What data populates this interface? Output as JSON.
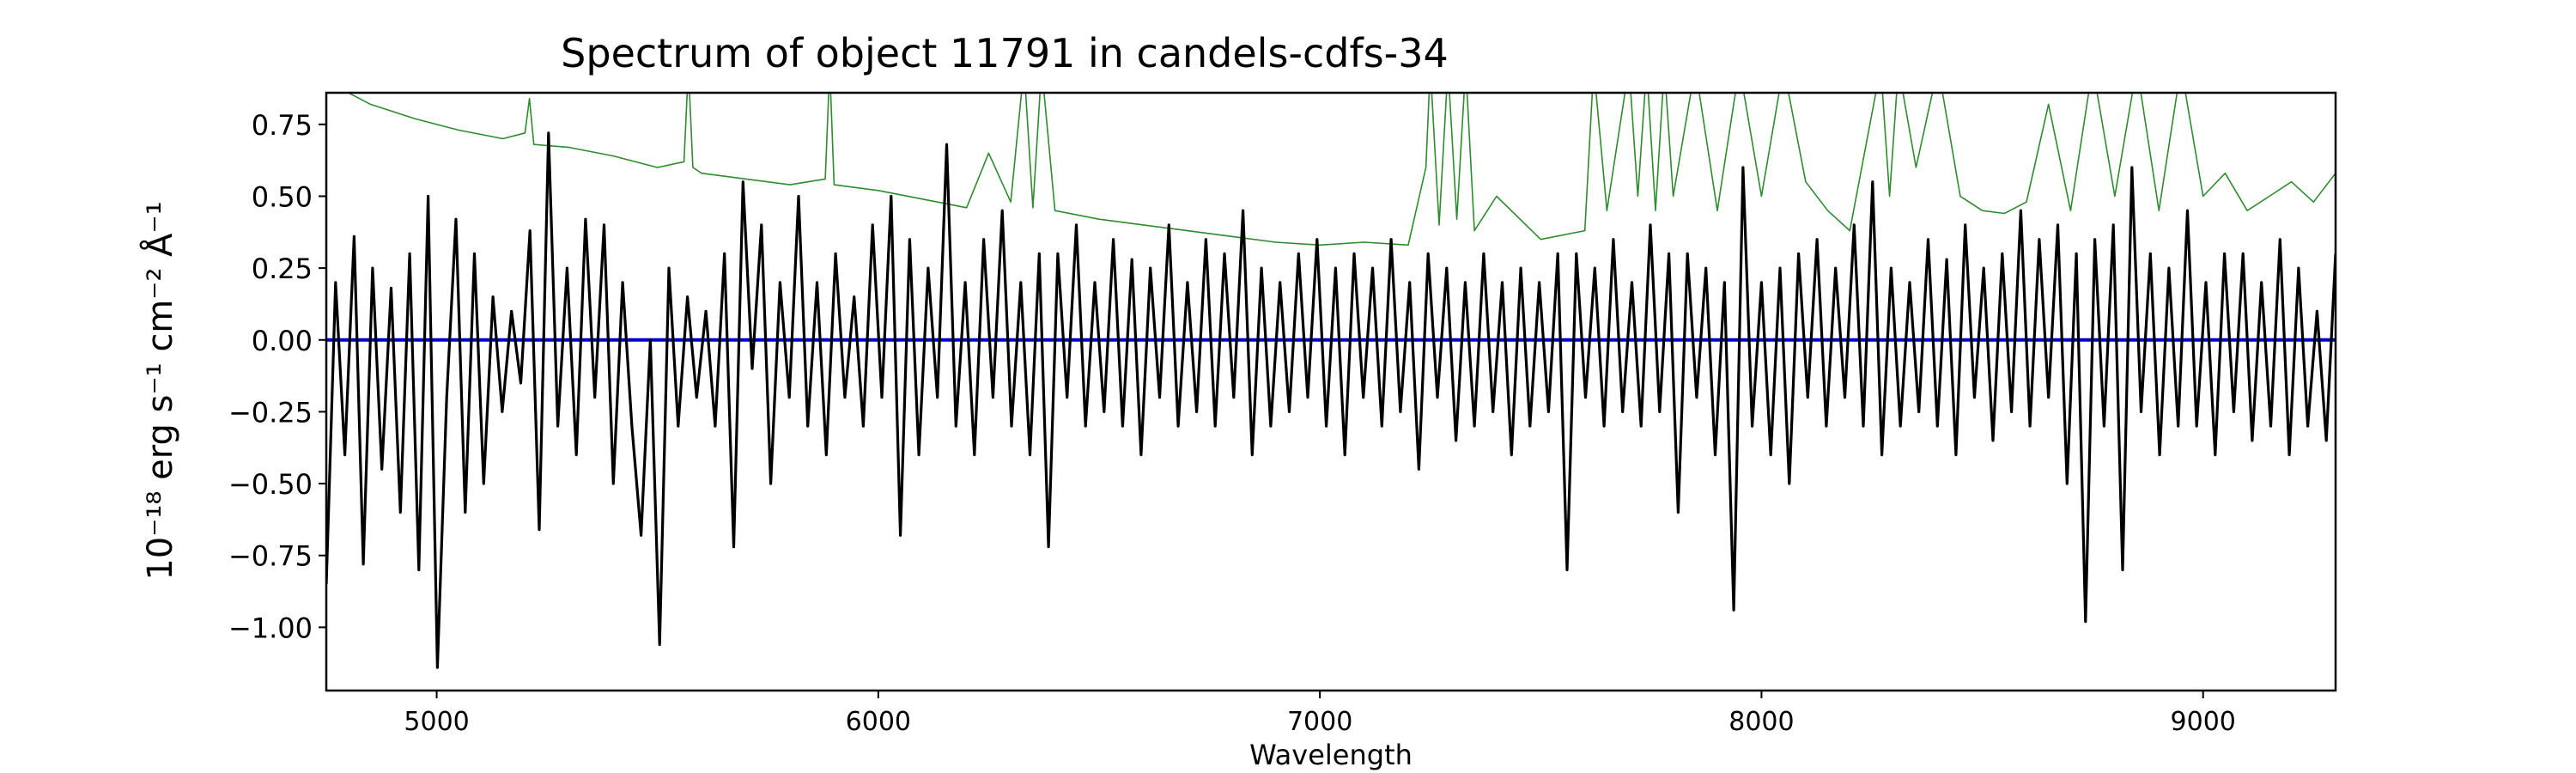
{
  "chart_data": {
    "type": "line",
    "title": "Spectrum of object 11791 in candels-cdfs-34",
    "xlabel": "Wavelength",
    "ylabel": "10⁻¹⁸ erg s⁻¹ cm⁻² Å⁻¹",
    "xlim": [
      4750,
      9300
    ],
    "ylim": [
      -1.22,
      0.86
    ],
    "x_ticks": [
      5000,
      6000,
      7000,
      8000,
      9000
    ],
    "y_ticks": [
      -1.0,
      -0.75,
      -0.5,
      -0.25,
      0.0,
      0.25,
      0.5,
      0.75
    ],
    "x_tick_labels": [
      "5000",
      "6000",
      "7000",
      "8000",
      "9000"
    ],
    "y_tick_labels": [
      "−1.00",
      "−0.75",
      "−0.50",
      "−0.25",
      "0.00",
      "0.25",
      "0.50",
      "0.75"
    ],
    "grid": false,
    "legend": "none",
    "series": [
      {
        "role": "flux",
        "color": "#000000",
        "x_start": 4750,
        "x_end": 9300,
        "values": [
          -0.85,
          0.2,
          -0.4,
          0.36,
          -0.78,
          0.25,
          -0.45,
          0.18,
          -0.6,
          0.3,
          -0.8,
          0.5,
          -1.14,
          -0.2,
          0.42,
          -0.6,
          0.3,
          -0.5,
          0.15,
          -0.25,
          0.1,
          -0.15,
          0.38,
          -0.66,
          0.72,
          -0.3,
          0.25,
          -0.4,
          0.42,
          -0.2,
          0.4,
          -0.5,
          0.2,
          -0.3,
          -0.68,
          0.0,
          -1.06,
          0.25,
          -0.3,
          0.15,
          -0.2,
          0.1,
          -0.3,
          0.3,
          -0.72,
          0.55,
          -0.1,
          0.4,
          -0.5,
          0.2,
          -0.2,
          0.5,
          -0.3,
          0.2,
          -0.4,
          0.3,
          -0.2,
          0.15,
          -0.3,
          0.4,
          -0.2,
          0.5,
          -0.68,
          0.35,
          -0.4,
          0.25,
          -0.2,
          0.68,
          -0.3,
          0.2,
          -0.4,
          0.35,
          -0.2,
          0.45,
          -0.3,
          0.2,
          -0.4,
          0.3,
          -0.72,
          0.3,
          -0.2,
          0.4,
          -0.3,
          0.2,
          -0.25,
          0.35,
          -0.3,
          0.28,
          -0.4,
          0.25,
          -0.2,
          0.4,
          -0.3,
          0.2,
          -0.25,
          0.35,
          -0.3,
          0.3,
          -0.2,
          0.45,
          -0.4,
          0.25,
          -0.3,
          0.2,
          -0.25,
          0.3,
          -0.2,
          0.35,
          -0.3,
          0.25,
          -0.4,
          0.3,
          -0.2,
          0.25,
          -0.3,
          0.35,
          -0.25,
          0.2,
          -0.45,
          0.3,
          -0.2,
          0.25,
          -0.35,
          0.2,
          -0.3,
          0.3,
          -0.25,
          0.2,
          -0.4,
          0.25,
          -0.3,
          0.2,
          -0.25,
          0.3,
          -0.8,
          0.3,
          -0.2,
          0.25,
          -0.3,
          0.35,
          -0.25,
          0.2,
          -0.3,
          0.4,
          -0.25,
          0.3,
          -0.6,
          0.3,
          -0.2,
          0.25,
          -0.4,
          0.2,
          -0.94,
          0.6,
          -0.3,
          0.2,
          -0.4,
          0.25,
          -0.5,
          0.3,
          -0.2,
          0.35,
          -0.3,
          0.25,
          -0.2,
          0.4,
          -0.3,
          0.55,
          -0.4,
          0.25,
          -0.3,
          0.2,
          -0.25,
          0.35,
          -0.3,
          0.28,
          -0.4,
          0.4,
          -0.2,
          0.25,
          -0.35,
          0.3,
          -0.25,
          0.45,
          -0.3,
          0.35,
          -0.2,
          0.4,
          -0.5,
          0.3,
          -0.98,
          0.35,
          -0.3,
          0.4,
          -0.8,
          0.6,
          -0.25,
          0.3,
          -0.4,
          0.25,
          -0.3,
          0.45,
          -0.3,
          0.2,
          -0.4,
          0.3,
          -0.25,
          0.3,
          -0.35,
          0.2,
          -0.3,
          0.35,
          -0.4,
          0.25,
          -0.3,
          0.1,
          -0.35,
          0.3
        ]
      },
      {
        "role": "error",
        "color": "#2e8b2e",
        "x": [
          4750,
          4850,
          4950,
          5050,
          5150,
          5200,
          5210,
          5220,
          5300,
          5400,
          5500,
          5560,
          5570,
          5580,
          5600,
          5700,
          5800,
          5880,
          5890,
          5900,
          6000,
          6100,
          6200,
          6250,
          6300,
          6330,
          6350,
          6370,
          6400,
          6500,
          6600,
          6700,
          6800,
          6900,
          7000,
          7100,
          7200,
          7240,
          7250,
          7270,
          7290,
          7310,
          7330,
          7350,
          7400,
          7500,
          7600,
          7620,
          7650,
          7700,
          7720,
          7740,
          7760,
          7780,
          7800,
          7850,
          7900,
          7950,
          8000,
          8050,
          8100,
          8150,
          8200,
          8270,
          8290,
          8310,
          8350,
          8400,
          8450,
          8500,
          8550,
          8600,
          8650,
          8700,
          8750,
          8800,
          8850,
          8900,
          8950,
          9000,
          9050,
          9100,
          9150,
          9200,
          9250,
          9300
        ],
        "values": [
          0.9,
          0.82,
          0.77,
          0.73,
          0.7,
          0.72,
          0.84,
          0.68,
          0.67,
          0.64,
          0.6,
          0.62,
          0.95,
          0.6,
          0.58,
          0.56,
          0.54,
          0.56,
          0.95,
          0.54,
          0.52,
          0.49,
          0.46,
          0.65,
          0.48,
          0.95,
          0.46,
          0.95,
          0.45,
          0.42,
          0.4,
          0.38,
          0.36,
          0.34,
          0.33,
          0.34,
          0.33,
          0.6,
          0.95,
          0.4,
          0.95,
          0.42,
          0.95,
          0.38,
          0.5,
          0.35,
          0.38,
          0.95,
          0.45,
          0.95,
          0.5,
          0.95,
          0.45,
          0.95,
          0.5,
          0.95,
          0.45,
          0.95,
          0.5,
          0.95,
          0.55,
          0.45,
          0.38,
          0.95,
          0.5,
          0.95,
          0.6,
          0.95,
          0.5,
          0.45,
          0.44,
          0.48,
          0.82,
          0.45,
          0.95,
          0.5,
          0.95,
          0.45,
          0.95,
          0.5,
          0.58,
          0.45,
          0.5,
          0.55,
          0.48,
          0.58
        ]
      },
      {
        "role": "model",
        "color": "#0000cc",
        "x": [
          4750,
          9300
        ],
        "values": [
          0.0,
          0.0
        ]
      }
    ]
  }
}
